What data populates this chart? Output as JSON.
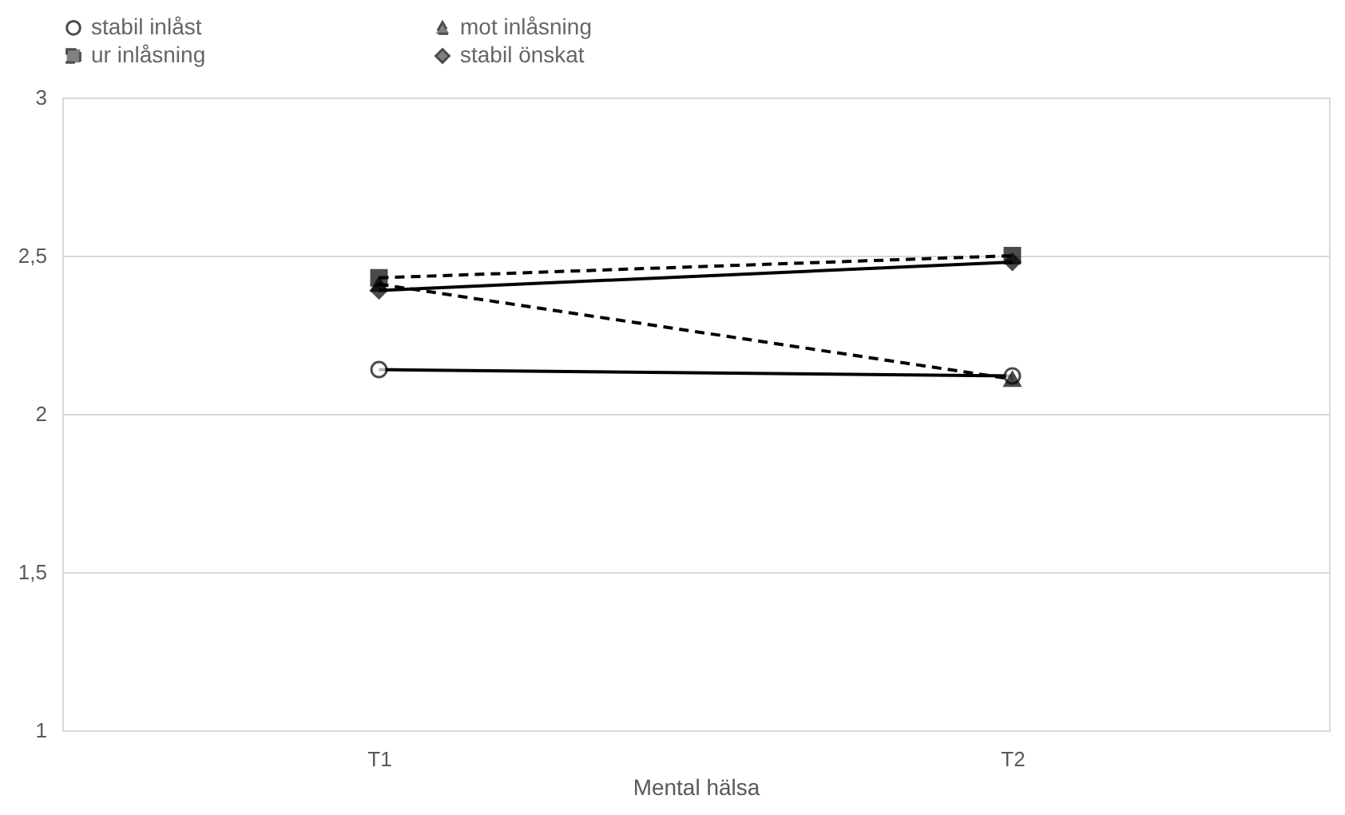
{
  "chart_data": {
    "type": "line",
    "xlabel": "Mental hälsa",
    "categories": [
      "T1",
      "T2"
    ],
    "series": [
      {
        "name": "stabil inlåst",
        "color": "#000000",
        "values": [
          2.14,
          2.12
        ],
        "marker": "circle",
        "line_style": "solid"
      },
      {
        "name": "mot inlåsning",
        "color": "#000000",
        "values": [
          2.41,
          2.11
        ],
        "marker": "triangle",
        "line_style": "dashed"
      },
      {
        "name": "ur inlåsning",
        "color": "#000000",
        "values": [
          2.43,
          2.5
        ],
        "marker": "square",
        "line_style": "dashed"
      },
      {
        "name": "stabil önskat",
        "color": "#000000",
        "values": [
          2.39,
          2.48
        ],
        "marker": "diamond",
        "line_style": "solid"
      }
    ],
    "ylim": [
      1,
      3
    ],
    "yticks": [
      {
        "value": 1,
        "label": "1"
      },
      {
        "value": 1.5,
        "label": "1,5"
      },
      {
        "value": 2,
        "label": "2"
      },
      {
        "value": 2.5,
        "label": "2,5"
      },
      {
        "value": 3,
        "label": "3"
      }
    ],
    "grid": "y",
    "legend": "top"
  }
}
